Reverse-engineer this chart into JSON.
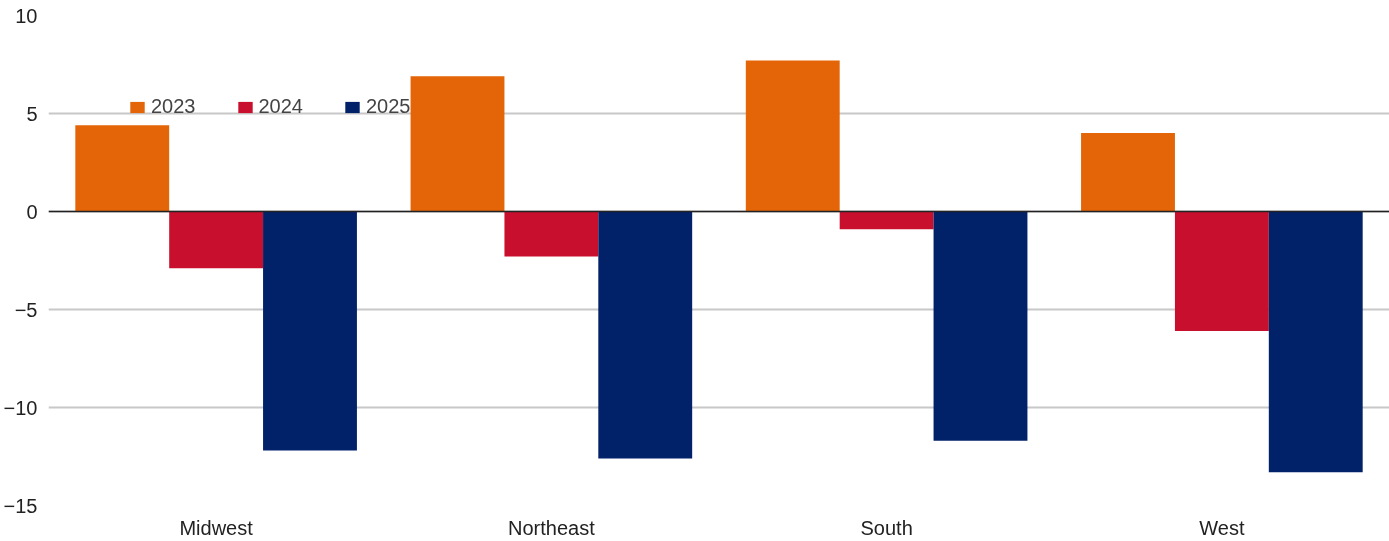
{
  "chart_data": {
    "type": "bar",
    "categories": [
      "Midwest",
      "Northeast",
      "South",
      "West"
    ],
    "series": [
      {
        "name": "2023",
        "color": "#e36507",
        "values": [
          4.4,
          6.9,
          7.7,
          4.0
        ]
      },
      {
        "name": "2024",
        "color": "#c8102e",
        "values": [
          -2.9,
          -2.3,
          -0.9,
          -6.1
        ]
      },
      {
        "name": "2025",
        "color": "#012169",
        "values": [
          -12.2,
          -12.6,
          -11.7,
          -13.3
        ]
      }
    ],
    "ylim": [
      -15,
      10
    ],
    "yticks": [
      -15,
      -10,
      -5,
      0,
      5,
      10
    ],
    "grid": "y",
    "legend": "top left"
  }
}
